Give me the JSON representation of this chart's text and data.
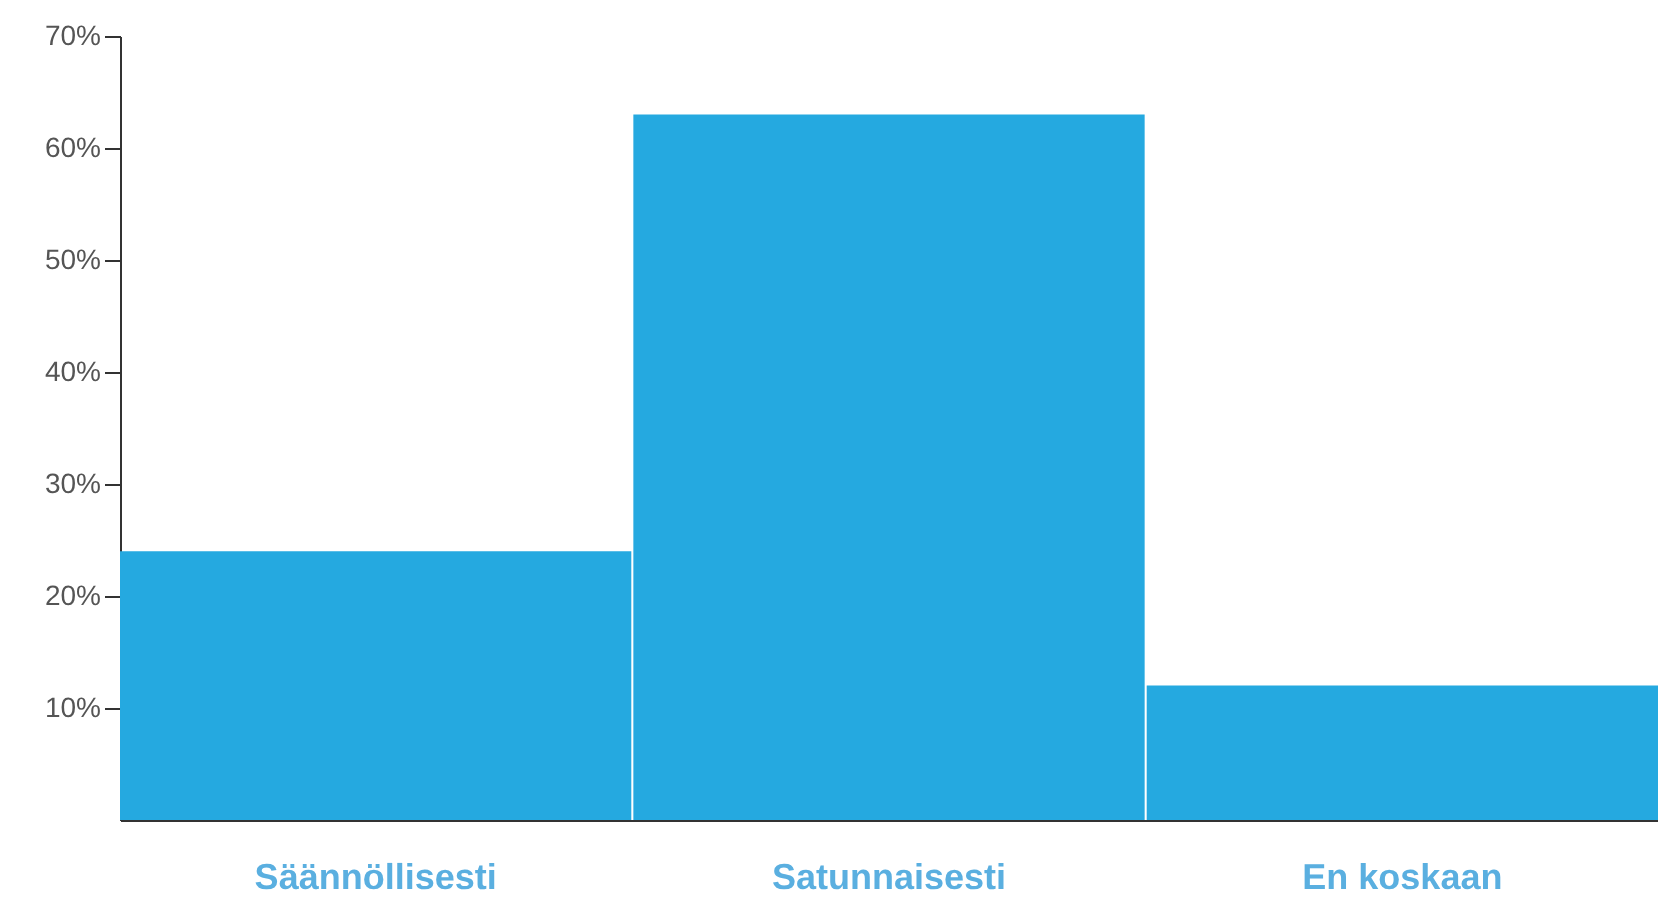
{
  "chart_data": {
    "type": "bar",
    "categories": [
      "Säännöllisesti",
      "Satunnaisesti",
      "En koskaan"
    ],
    "values": [
      24,
      63,
      12
    ],
    "color": "#25a9e0",
    "ylim": [
      0,
      70
    ],
    "yticks": [
      {
        "value": 10,
        "label": "10%"
      },
      {
        "value": 20,
        "label": "20%"
      },
      {
        "value": 30,
        "label": "30%"
      },
      {
        "value": 40,
        "label": "40%"
      },
      {
        "value": 50,
        "label": "50%"
      },
      {
        "value": 60,
        "label": "60%"
      },
      {
        "value": 70,
        "label": "70%"
      }
    ],
    "grid": false
  }
}
